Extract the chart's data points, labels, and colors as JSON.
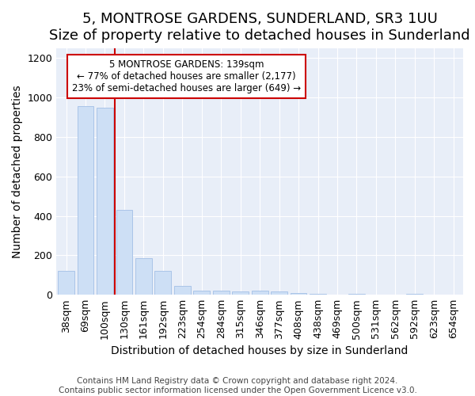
{
  "title": "5, MONTROSE GARDENS, SUNDERLAND, SR3 1UU",
  "subtitle": "Size of property relative to detached houses in Sunderland",
  "xlabel": "Distribution of detached houses by size in Sunderland",
  "ylabel": "Number of detached properties",
  "footer_line1": "Contains HM Land Registry data © Crown copyright and database right 2024.",
  "footer_line2": "Contains public sector information licensed under the Open Government Licence v3.0.",
  "categories": [
    "38sqm",
    "69sqm",
    "100sqm",
    "130sqm",
    "161sqm",
    "192sqm",
    "223sqm",
    "254sqm",
    "284sqm",
    "315sqm",
    "346sqm",
    "377sqm",
    "408sqm",
    "438sqm",
    "469sqm",
    "500sqm",
    "531sqm",
    "562sqm",
    "592sqm",
    "623sqm",
    "654sqm"
  ],
  "values": [
    120,
    955,
    950,
    430,
    185,
    120,
    45,
    20,
    20,
    15,
    20,
    15,
    10,
    5,
    0,
    5,
    0,
    0,
    5,
    0,
    0
  ],
  "bar_color": "#cddff5",
  "bar_edge_color": "#aac4e8",
  "ylim": [
    0,
    1250
  ],
  "yticks": [
    0,
    200,
    400,
    600,
    800,
    1000,
    1200
  ],
  "annotation_box_text_line1": "5 MONTROSE GARDENS: 139sqm",
  "annotation_box_text_line2": "← 77% of detached houses are smaller (2,177)",
  "annotation_box_text_line3": "23% of semi-detached houses are larger (649) →",
  "vline_x_index": 2.5,
  "title_fontsize": 13,
  "subtitle_fontsize": 10,
  "axis_label_fontsize": 10,
  "tick_fontsize": 9,
  "footer_fontsize": 7.5,
  "bg_color": "#ffffff",
  "plot_bg_color": "#e8eef8",
  "annotation_box_color": "white",
  "annotation_box_edge_color": "#cc0000",
  "vline_color": "#cc0000",
  "grid_color": "#ffffff"
}
